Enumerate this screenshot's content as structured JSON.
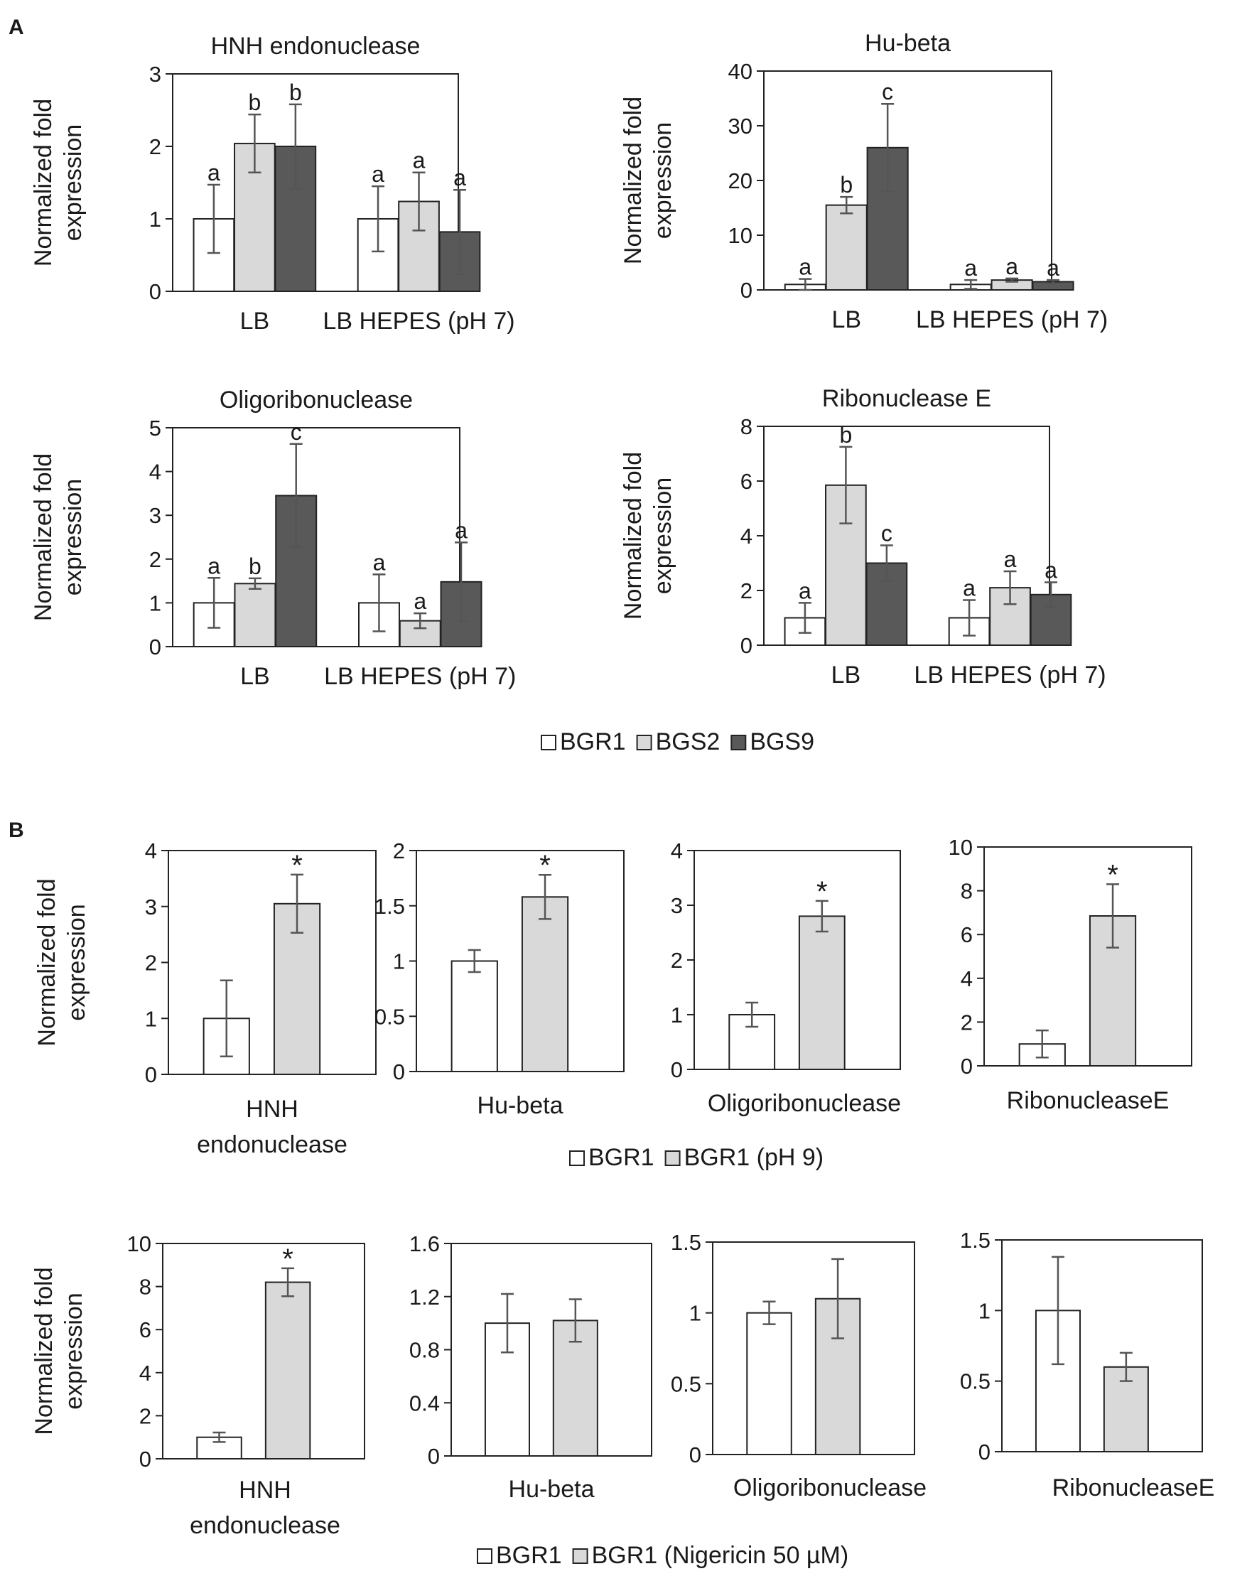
{
  "panel_labels": [
    "A",
    "B"
  ],
  "y_axis_label_lines": [
    "Normalized fold",
    "expression"
  ],
  "legends": {
    "A": [
      "BGR1",
      "BGS2",
      "BGS9"
    ],
    "B1": [
      "BGR1",
      "BGR1 (pH 9)"
    ],
    "B2": [
      "BGR1",
      "BGR1 (Nigericin 50 µM)"
    ]
  },
  "colors": {
    "white_bar": "#ffffff",
    "light_bar": "#d9d9d9",
    "dark_bar": "#595959",
    "axis": "#222222",
    "error": "#555555"
  },
  "chart_data": [
    {
      "id": "A1",
      "type": "bar",
      "title": "HNH endonuclease",
      "categories": [
        "LB",
        "LB HEPES (pH 7)"
      ],
      "ylim": [
        0,
        3
      ],
      "yticks": [
        0,
        1,
        2,
        3
      ],
      "series": [
        {
          "name": "BGR1",
          "values": [
            1.0,
            1.0
          ],
          "errors": [
            0.47,
            0.45
          ],
          "labels": [
            "a",
            "a"
          ]
        },
        {
          "name": "BGS2",
          "values": [
            2.04,
            1.24
          ],
          "errors": [
            0.4,
            0.4
          ],
          "labels": [
            "b",
            "a"
          ]
        },
        {
          "name": "BGS9",
          "values": [
            2.0,
            0.82
          ],
          "errors": [
            0.58,
            0.58
          ],
          "labels": [
            "b",
            "a"
          ]
        }
      ]
    },
    {
      "id": "A2",
      "type": "bar",
      "title": "Hu-beta",
      "categories": [
        "LB",
        "LB HEPES (pH 7)"
      ],
      "ylim": [
        0,
        40
      ],
      "yticks": [
        0,
        10,
        20,
        30,
        40
      ],
      "series": [
        {
          "name": "BGR1",
          "values": [
            1.0,
            1.0
          ],
          "errors": [
            1.0,
            0.8
          ],
          "labels": [
            "a",
            "a"
          ]
        },
        {
          "name": "BGS2",
          "values": [
            15.5,
            1.8
          ],
          "errors": [
            1.5,
            0.3
          ],
          "labels": [
            "b",
            "a"
          ]
        },
        {
          "name": "BGS9",
          "values": [
            26.0,
            1.5
          ],
          "errors": [
            8.0,
            0.3
          ],
          "labels": [
            "c",
            "a"
          ]
        }
      ]
    },
    {
      "id": "A3",
      "type": "bar",
      "title": "Oligoribonuclease",
      "categories": [
        "LB",
        "LB HEPES (pH 7)"
      ],
      "ylim": [
        0,
        5
      ],
      "yticks": [
        0,
        1,
        2,
        3,
        4,
        5
      ],
      "series": [
        {
          "name": "BGR1",
          "values": [
            1.0,
            1.0
          ],
          "errors": [
            0.57,
            0.65
          ],
          "labels": [
            "a",
            "a"
          ]
        },
        {
          "name": "BGS2",
          "values": [
            1.44,
            0.59
          ],
          "errors": [
            0.12,
            0.17
          ],
          "labels": [
            "b",
            "a"
          ]
        },
        {
          "name": "BGS9",
          "values": [
            3.45,
            1.48
          ],
          "errors": [
            1.18,
            0.9
          ],
          "labels": [
            "c",
            "a"
          ]
        }
      ]
    },
    {
      "id": "A4",
      "type": "bar",
      "title": "Ribonuclease E",
      "categories": [
        "LB",
        "LB HEPES (pH 7)"
      ],
      "ylim": [
        0,
        8
      ],
      "yticks": [
        0,
        2,
        4,
        6,
        8
      ],
      "series": [
        {
          "name": "BGR1",
          "values": [
            1.0,
            1.0
          ],
          "errors": [
            0.55,
            0.65
          ],
          "labels": [
            "a",
            "a"
          ]
        },
        {
          "name": "BGS2",
          "values": [
            5.85,
            2.1
          ],
          "errors": [
            1.4,
            0.6
          ],
          "labels": [
            "b",
            "a"
          ]
        },
        {
          "name": "BGS9",
          "values": [
            3.0,
            1.85
          ],
          "errors": [
            0.65,
            0.45
          ],
          "labels": [
            "c",
            "a"
          ]
        }
      ]
    },
    {
      "id": "B1",
      "type": "bar",
      "categories": [
        "HNH endonuclease"
      ],
      "ylim": [
        0,
        4
      ],
      "yticks": [
        0,
        1,
        2,
        3,
        4
      ],
      "series": [
        {
          "name": "BGR1",
          "values": [
            1.0
          ],
          "errors": [
            0.68
          ],
          "labels": [
            ""
          ]
        },
        {
          "name": "BGR1 (pH 9)",
          "values": [
            3.05
          ],
          "errors": [
            0.52
          ],
          "labels": [
            "*"
          ]
        }
      ]
    },
    {
      "id": "B2",
      "type": "bar",
      "categories": [
        "Hu-beta"
      ],
      "ylim": [
        0,
        2
      ],
      "yticks": [
        0,
        0.5,
        1,
        1.5,
        2
      ],
      "series": [
        {
          "name": "BGR1",
          "values": [
            1.0
          ],
          "errors": [
            0.1
          ],
          "labels": [
            ""
          ]
        },
        {
          "name": "BGR1 (pH 9)",
          "values": [
            1.58
          ],
          "errors": [
            0.2
          ],
          "labels": [
            "*"
          ]
        }
      ]
    },
    {
      "id": "B3",
      "type": "bar",
      "categories": [
        "Oligoribonuclease"
      ],
      "ylim": [
        0,
        4
      ],
      "yticks": [
        0,
        1,
        2,
        3,
        4
      ],
      "series": [
        {
          "name": "BGR1",
          "values": [
            1.0
          ],
          "errors": [
            0.22
          ],
          "labels": [
            ""
          ]
        },
        {
          "name": "BGR1 (pH 9)",
          "values": [
            2.8
          ],
          "errors": [
            0.28
          ],
          "labels": [
            "*"
          ]
        }
      ]
    },
    {
      "id": "B4",
      "type": "bar",
      "categories": [
        "RibonucleaseE"
      ],
      "ylim": [
        0,
        10
      ],
      "yticks": [
        0,
        2,
        4,
        6,
        8,
        10
      ],
      "series": [
        {
          "name": "BGR1",
          "values": [
            1.0
          ],
          "errors": [
            0.62
          ],
          "labels": [
            ""
          ]
        },
        {
          "name": "BGR1 (pH 9)",
          "values": [
            6.85
          ],
          "errors": [
            1.45
          ],
          "labels": [
            "*"
          ]
        }
      ]
    },
    {
      "id": "B5",
      "type": "bar",
      "categories": [
        "HNH endonuclease"
      ],
      "ylim": [
        0,
        10
      ],
      "yticks": [
        0,
        2,
        4,
        6,
        8,
        10
      ],
      "series": [
        {
          "name": "BGR1",
          "values": [
            1.0
          ],
          "errors": [
            0.22
          ],
          "labels": [
            ""
          ]
        },
        {
          "name": "BGR1 (Nigericin 50 µM)",
          "values": [
            8.2
          ],
          "errors": [
            0.65
          ],
          "labels": [
            "*"
          ]
        }
      ]
    },
    {
      "id": "B6",
      "type": "bar",
      "categories": [
        "Hu-beta"
      ],
      "ylim": [
        0,
        1.6
      ],
      "yticks": [
        0,
        0.4,
        0.8,
        1.2,
        1.6
      ],
      "series": [
        {
          "name": "BGR1",
          "values": [
            1.0
          ],
          "errors": [
            0.22
          ],
          "labels": [
            ""
          ]
        },
        {
          "name": "BGR1 (Nigericin 50 µM)",
          "values": [
            1.02
          ],
          "errors": [
            0.16
          ],
          "labels": [
            ""
          ]
        }
      ]
    },
    {
      "id": "B7",
      "type": "bar",
      "categories": [
        "Oligoribonuclease"
      ],
      "ylim": [
        0,
        1.5
      ],
      "yticks": [
        0,
        0.5,
        1,
        1.5
      ],
      "series": [
        {
          "name": "BGR1",
          "values": [
            1.0
          ],
          "errors": [
            0.08
          ],
          "labels": [
            ""
          ]
        },
        {
          "name": "BGR1 (Nigericin 50 µM)",
          "values": [
            1.1
          ],
          "errors": [
            0.28
          ],
          "labels": [
            ""
          ]
        }
      ]
    },
    {
      "id": "B8",
      "type": "bar",
      "categories": [
        "RibonucleaseE"
      ],
      "ylim": [
        0,
        1.5
      ],
      "yticks": [
        0,
        0.5,
        1,
        1.5
      ],
      "series": [
        {
          "name": "BGR1",
          "values": [
            1.0
          ],
          "errors": [
            0.38
          ],
          "labels": [
            ""
          ]
        },
        {
          "name": "BGR1 (Nigericin 50 µM)",
          "values": [
            0.6
          ],
          "errors": [
            0.1
          ],
          "labels": [
            ""
          ]
        }
      ]
    }
  ]
}
